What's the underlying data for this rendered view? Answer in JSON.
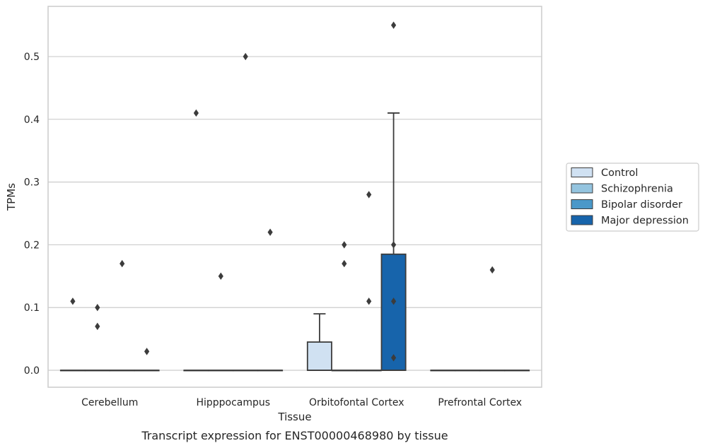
{
  "chart_data": {
    "type": "box",
    "title": "",
    "caption": "Transcript expression for ENST00000468980 by tissue",
    "xlabel": "Tissue",
    "ylabel": "TPMs",
    "ylim": [
      -0.027,
      0.58
    ],
    "yticks": [
      "0.0",
      "0.1",
      "0.2",
      "0.3",
      "0.4",
      "0.5"
    ],
    "grid": "horizontal",
    "legend_position": "right",
    "categories": [
      "Cerebellum",
      "Hipppocampus",
      "Orbitofontal Cortex",
      "Prefrontal Cortex"
    ],
    "series": [
      {
        "name": "Control",
        "color": "#d0e1f2",
        "boxes": [
          {
            "category": "Cerebellum",
            "q1": 0,
            "median": 0,
            "q3": 0,
            "whisker_low": 0,
            "whisker_high": 0,
            "outliers": [
              0.11
            ]
          },
          {
            "category": "Hipppocampus",
            "q1": 0,
            "median": 0,
            "q3": 0,
            "whisker_low": 0,
            "whisker_high": 0,
            "outliers": [
              0.41
            ]
          },
          {
            "category": "Orbitofontal Cortex",
            "q1": 0,
            "median": 0,
            "q3": 0.045,
            "whisker_low": 0,
            "whisker_high": 0.09,
            "outliers": []
          },
          {
            "category": "Prefrontal Cortex",
            "q1": 0,
            "median": 0,
            "q3": 0,
            "whisker_low": 0,
            "whisker_high": 0,
            "outliers": []
          }
        ]
      },
      {
        "name": "Schizophrenia",
        "color": "#94c4df",
        "boxes": [
          {
            "category": "Cerebellum",
            "q1": 0,
            "median": 0,
            "q3": 0,
            "whisker_low": 0,
            "whisker_high": 0,
            "outliers": [
              0.1,
              0.07
            ]
          },
          {
            "category": "Hipppocampus",
            "q1": 0,
            "median": 0,
            "q3": 0,
            "whisker_low": 0,
            "whisker_high": 0,
            "outliers": [
              0.15
            ]
          },
          {
            "category": "Orbitofontal Cortex",
            "q1": 0,
            "median": 0,
            "q3": 0,
            "whisker_low": 0,
            "whisker_high": 0,
            "outliers": [
              0.2,
              0.17
            ]
          },
          {
            "category": "Prefrontal Cortex",
            "q1": 0,
            "median": 0,
            "q3": 0,
            "whisker_low": 0,
            "whisker_high": 0,
            "outliers": []
          }
        ]
      },
      {
        "name": "Bipolar disorder",
        "color": "#4a98c9",
        "boxes": [
          {
            "category": "Cerebellum",
            "q1": 0,
            "median": 0,
            "q3": 0,
            "whisker_low": 0,
            "whisker_high": 0,
            "outliers": [
              0.17
            ]
          },
          {
            "category": "Hipppocampus",
            "q1": 0,
            "median": 0,
            "q3": 0,
            "whisker_low": 0,
            "whisker_high": 0,
            "outliers": [
              0.5
            ]
          },
          {
            "category": "Orbitofontal Cortex",
            "q1": 0,
            "median": 0,
            "q3": 0,
            "whisker_low": 0,
            "whisker_high": 0,
            "outliers": [
              0.28,
              0.11
            ]
          },
          {
            "category": "Prefrontal Cortex",
            "q1": 0,
            "median": 0,
            "q3": 0,
            "whisker_low": 0,
            "whisker_high": 0,
            "outliers": [
              0.16
            ]
          }
        ]
      },
      {
        "name": "Major depression",
        "color": "#1764ab",
        "boxes": [
          {
            "category": "Cerebellum",
            "q1": 0,
            "median": 0,
            "q3": 0,
            "whisker_low": 0,
            "whisker_high": 0,
            "outliers": [
              0.03
            ]
          },
          {
            "category": "Hipppocampus",
            "q1": 0,
            "median": 0,
            "q3": 0,
            "whisker_low": 0,
            "whisker_high": 0,
            "outliers": [
              0.22
            ]
          },
          {
            "category": "Orbitofontal Cortex",
            "q1": 0,
            "median": 0,
            "q3": 0.185,
            "whisker_low": 0,
            "whisker_high": 0.41,
            "outliers": [
              0.55,
              0.2,
              0.11,
              0.02
            ]
          },
          {
            "category": "Prefrontal Cortex",
            "q1": 0,
            "median": 0,
            "q3": 0,
            "whisker_low": 0,
            "whisker_high": 0,
            "outliers": []
          }
        ]
      }
    ]
  }
}
